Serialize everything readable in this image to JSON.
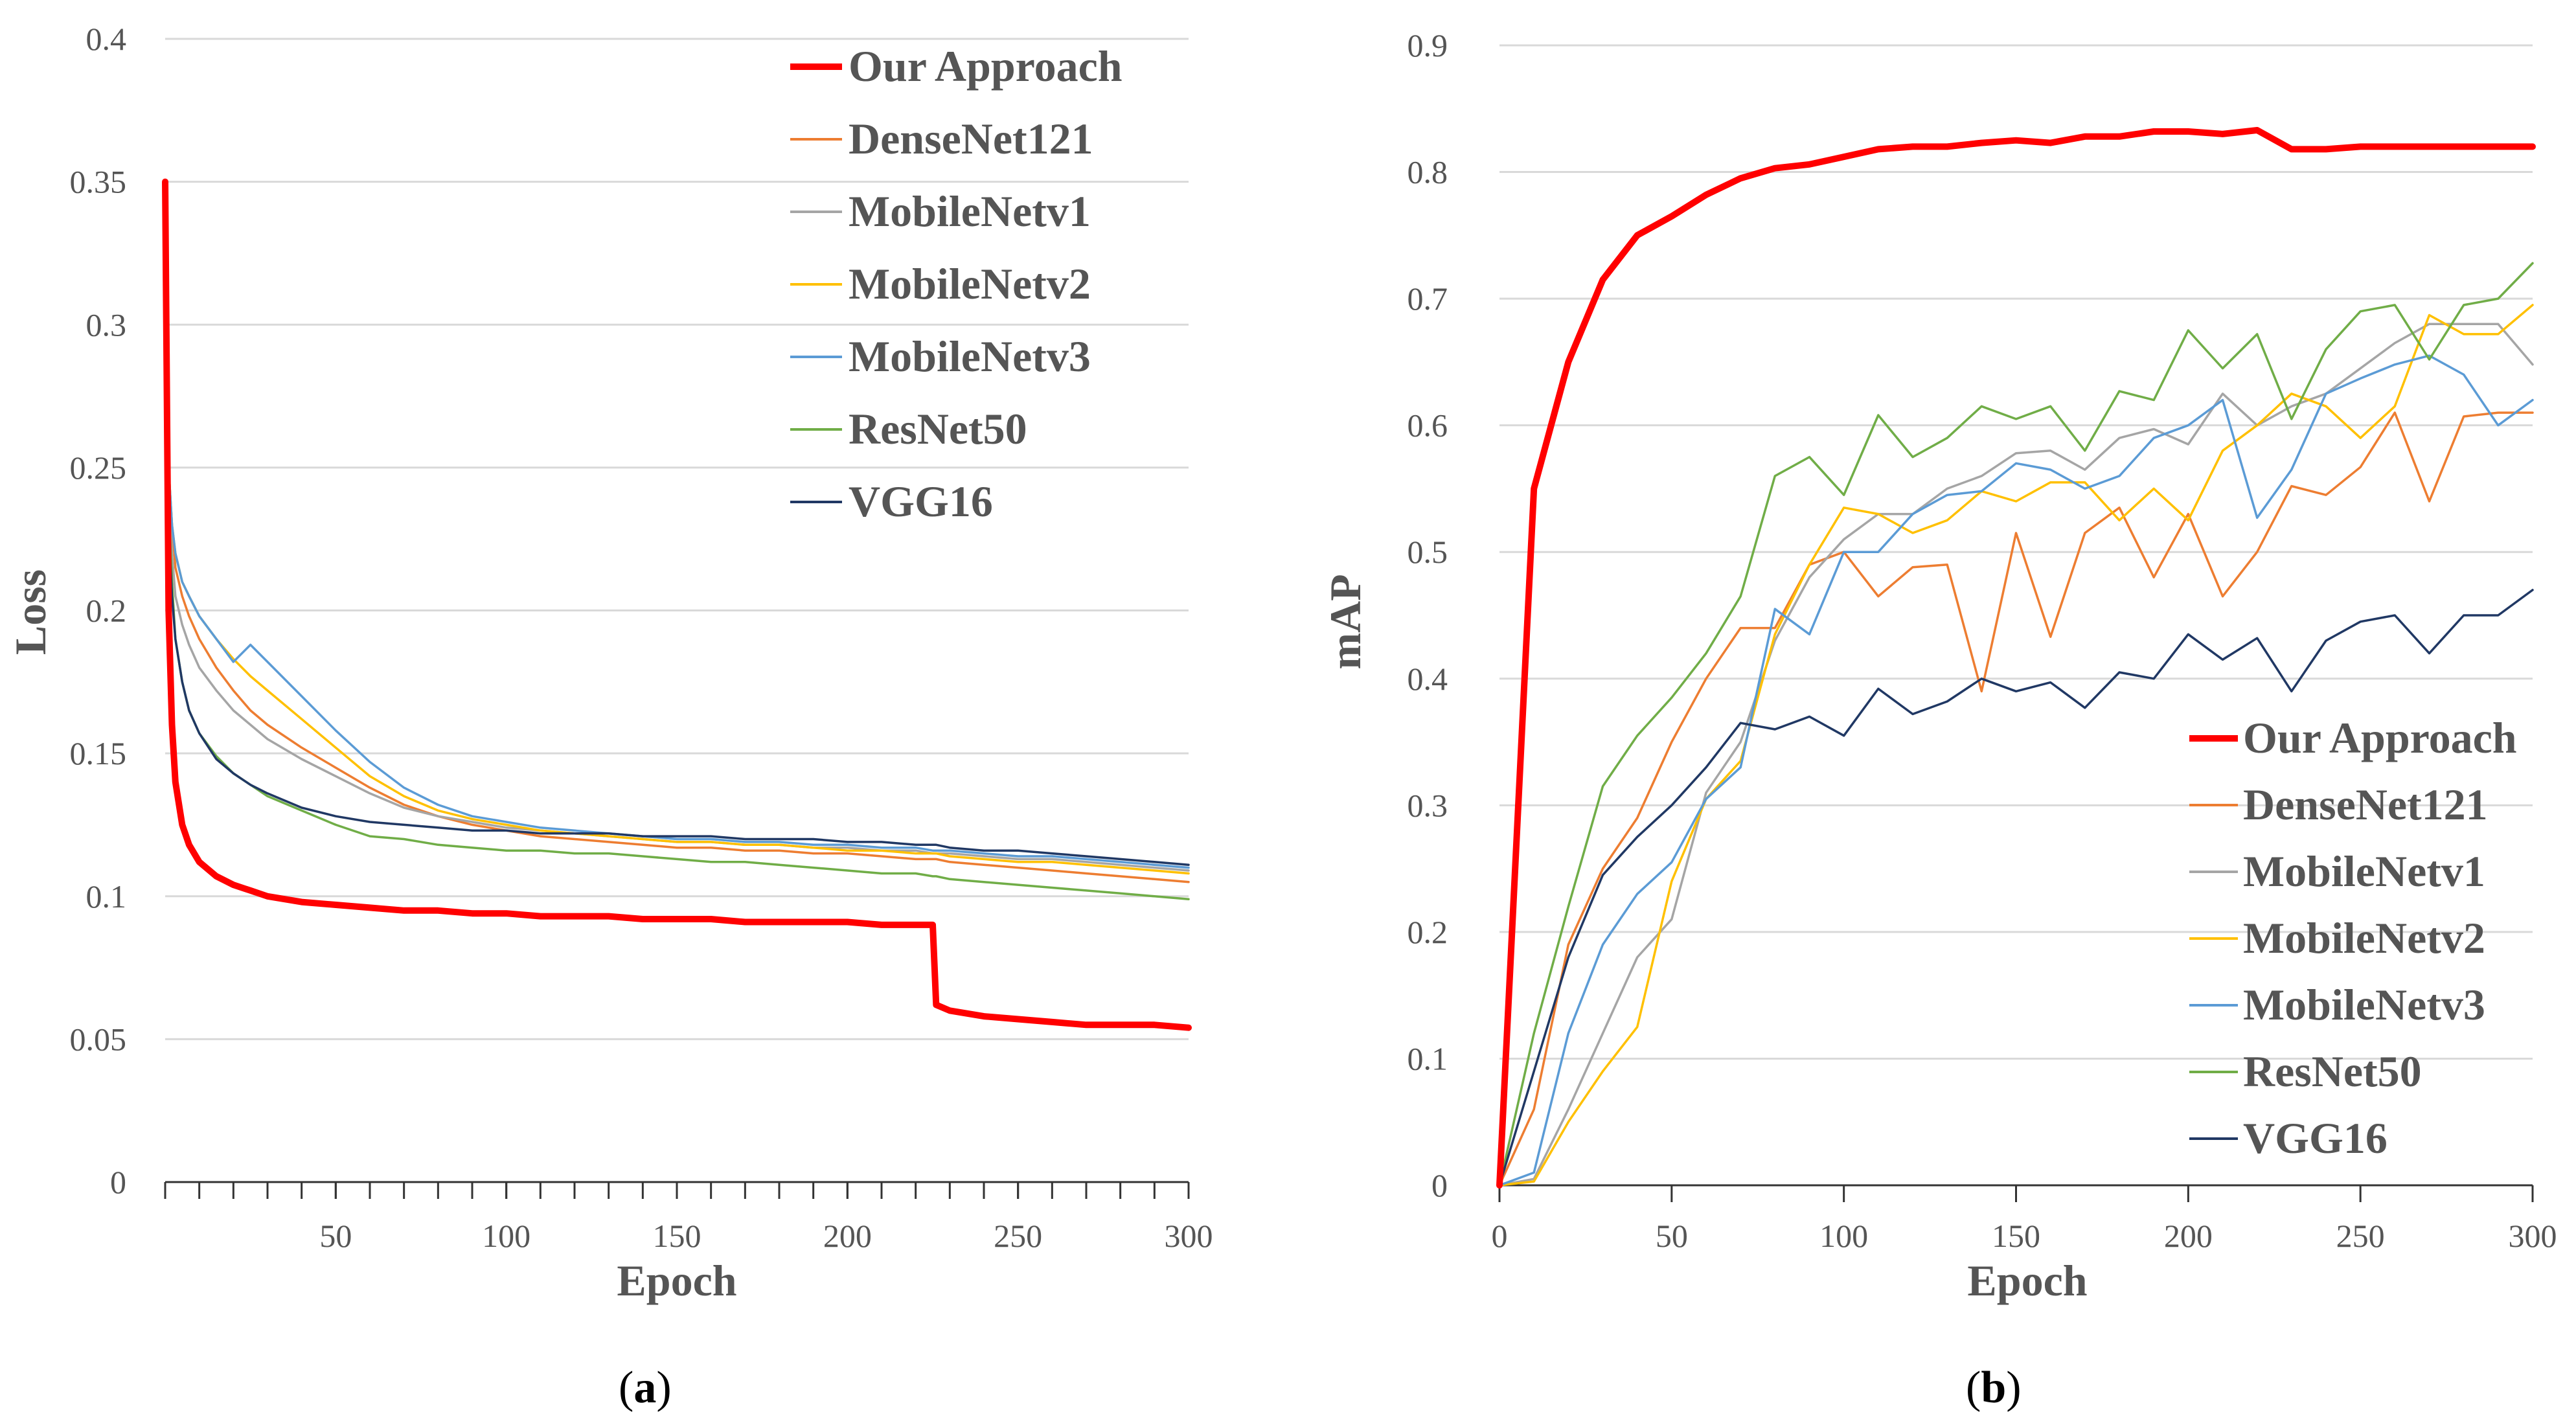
{
  "chart_data": [
    {
      "type": "line",
      "caption_letter": "a",
      "xlabel": "Epoch",
      "ylabel": "Loss",
      "xlim": [
        0,
        300
      ],
      "ylim": [
        0,
        0.4
      ],
      "x_ticks": [
        "50",
        "100",
        "150",
        "200",
        "250",
        "300"
      ],
      "y_ticks": [
        "0",
        "0.05",
        "0.1",
        "0.15",
        "0.2",
        "0.25",
        "0.3",
        "0.35",
        "0.4"
      ],
      "legend_position": "top-right",
      "x": [
        0,
        1,
        2,
        3,
        5,
        7,
        10,
        15,
        20,
        25,
        30,
        40,
        50,
        60,
        70,
        80,
        90,
        100,
        110,
        120,
        130,
        140,
        150,
        160,
        170,
        180,
        190,
        200,
        210,
        220,
        225,
        226,
        230,
        240,
        250,
        260,
        270,
        280,
        290,
        300
      ],
      "series": [
        {
          "name": "Our Approach",
          "color": "#FF0000",
          "width": "thick",
          "values": [
            0.35,
            0.2,
            0.16,
            0.14,
            0.125,
            0.118,
            0.112,
            0.107,
            0.104,
            0.102,
            0.1,
            0.098,
            0.097,
            0.096,
            0.095,
            0.095,
            0.094,
            0.094,
            0.093,
            0.093,
            0.093,
            0.092,
            0.092,
            0.092,
            0.091,
            0.091,
            0.091,
            0.091,
            0.09,
            0.09,
            0.09,
            0.062,
            0.06,
            0.058,
            0.057,
            0.056,
            0.055,
            0.055,
            0.055,
            0.054
          ]
        },
        {
          "name": "DenseNet121",
          "color": "#ED7D31",
          "width": "thin",
          "values": [
            0.3,
            0.25,
            0.23,
            0.215,
            0.205,
            0.198,
            0.19,
            0.18,
            0.172,
            0.165,
            0.16,
            0.152,
            0.145,
            0.138,
            0.132,
            0.128,
            0.125,
            0.123,
            0.121,
            0.12,
            0.119,
            0.118,
            0.117,
            0.117,
            0.116,
            0.116,
            0.115,
            0.115,
            0.114,
            0.113,
            0.113,
            0.113,
            0.112,
            0.111,
            0.11,
            0.109,
            0.108,
            0.107,
            0.106,
            0.105
          ]
        },
        {
          "name": "MobileNetv1",
          "color": "#A5A5A5",
          "width": "thin",
          "values": [
            0.29,
            0.24,
            0.22,
            0.205,
            0.195,
            0.188,
            0.18,
            0.172,
            0.165,
            0.16,
            0.155,
            0.148,
            0.142,
            0.136,
            0.131,
            0.128,
            0.126,
            0.124,
            0.123,
            0.122,
            0.121,
            0.12,
            0.119,
            0.119,
            0.118,
            0.118,
            0.117,
            0.117,
            0.116,
            0.116,
            0.115,
            0.115,
            0.115,
            0.114,
            0.113,
            0.113,
            0.112,
            0.111,
            0.11,
            0.109
          ]
        },
        {
          "name": "MobileNetv2",
          "color": "#FFC000",
          "width": "thin",
          "values": [
            0.29,
            0.25,
            0.23,
            0.22,
            0.21,
            0.205,
            0.198,
            0.19,
            0.183,
            0.177,
            0.172,
            0.162,
            0.152,
            0.142,
            0.135,
            0.13,
            0.127,
            0.125,
            0.123,
            0.122,
            0.121,
            0.12,
            0.119,
            0.119,
            0.118,
            0.118,
            0.117,
            0.116,
            0.116,
            0.115,
            0.115,
            0.115,
            0.114,
            0.113,
            0.112,
            0.112,
            0.111,
            0.11,
            0.109,
            0.108
          ]
        },
        {
          "name": "MobileNetv3",
          "color": "#5B9BD5",
          "width": "thin",
          "values": [
            0.29,
            0.25,
            0.23,
            0.22,
            0.21,
            0.205,
            0.198,
            0.19,
            0.182,
            0.188,
            0.182,
            0.17,
            0.158,
            0.147,
            0.138,
            0.132,
            0.128,
            0.126,
            0.124,
            0.123,
            0.122,
            0.121,
            0.12,
            0.12,
            0.119,
            0.119,
            0.118,
            0.118,
            0.117,
            0.117,
            0.116,
            0.116,
            0.116,
            0.115,
            0.114,
            0.114,
            0.113,
            0.112,
            0.111,
            0.11
          ]
        },
        {
          "name": "ResNet50",
          "color": "#70AD47",
          "width": "thin",
          "values": [
            0.29,
            0.24,
            0.21,
            0.19,
            0.175,
            0.165,
            0.157,
            0.149,
            0.143,
            0.139,
            0.135,
            0.13,
            0.125,
            0.121,
            0.12,
            0.118,
            0.117,
            0.116,
            0.116,
            0.115,
            0.115,
            0.114,
            0.113,
            0.112,
            0.112,
            0.111,
            0.11,
            0.109,
            0.108,
            0.108,
            0.107,
            0.107,
            0.106,
            0.105,
            0.104,
            0.103,
            0.102,
            0.101,
            0.1,
            0.099
          ]
        },
        {
          "name": "VGG16",
          "color": "#203864",
          "width": "thin",
          "values": [
            0.28,
            0.23,
            0.205,
            0.19,
            0.175,
            0.165,
            0.157,
            0.148,
            0.143,
            0.139,
            0.136,
            0.131,
            0.128,
            0.126,
            0.125,
            0.124,
            0.123,
            0.123,
            0.122,
            0.122,
            0.122,
            0.121,
            0.121,
            0.121,
            0.12,
            0.12,
            0.12,
            0.119,
            0.119,
            0.118,
            0.118,
            0.118,
            0.117,
            0.116,
            0.116,
            0.115,
            0.114,
            0.113,
            0.112,
            0.111
          ]
        }
      ]
    },
    {
      "type": "line",
      "caption_letter": "b",
      "xlabel": "Epoch",
      "ylabel": "mAP",
      "xlim": [
        0,
        300
      ],
      "ylim": [
        0,
        0.9
      ],
      "x_ticks": [
        "0",
        "50",
        "100",
        "150",
        "200",
        "250",
        "300"
      ],
      "y_ticks": [
        "0",
        "0.1",
        "0.2",
        "0.3",
        "0.4",
        "0.5",
        "0.6",
        "0.7",
        "0.8",
        "0.9"
      ],
      "legend_position": "bottom-right",
      "x": [
        0,
        10,
        20,
        30,
        40,
        50,
        60,
        70,
        80,
        90,
        100,
        110,
        120,
        130,
        140,
        150,
        160,
        170,
        180,
        190,
        200,
        210,
        220,
        230,
        240,
        250,
        260,
        270,
        280,
        290,
        300
      ],
      "series": [
        {
          "name": "Our Approach",
          "color": "#FF0000",
          "width": "thick",
          "values": [
            0,
            0.55,
            0.65,
            0.715,
            0.75,
            0.765,
            0.782,
            0.795,
            0.803,
            0.806,
            0.812,
            0.818,
            0.82,
            0.82,
            0.823,
            0.825,
            0.823,
            0.828,
            0.828,
            0.832,
            0.832,
            0.83,
            0.833,
            0.818,
            0.818,
            0.82,
            0.82,
            0.82,
            0.82,
            0.82,
            0.82
          ]
        },
        {
          "name": "DenseNet121",
          "color": "#ED7D31",
          "width": "thin",
          "values": [
            0,
            0.06,
            0.19,
            0.25,
            0.29,
            0.35,
            0.4,
            0.44,
            0.44,
            0.49,
            0.5,
            0.465,
            0.488,
            0.49,
            0.39,
            0.515,
            0.433,
            0.515,
            0.535,
            0.48,
            0.53,
            0.465,
            0.5,
            0.552,
            0.545,
            0.567,
            0.61,
            0.54,
            0.607,
            0.61,
            0.61
          ]
        },
        {
          "name": "MobileNetv1",
          "color": "#A5A5A5",
          "width": "thin",
          "values": [
            0,
            0.005,
            0.06,
            0.12,
            0.18,
            0.21,
            0.31,
            0.35,
            0.43,
            0.48,
            0.51,
            0.53,
            0.53,
            0.55,
            0.56,
            0.578,
            0.58,
            0.565,
            0.59,
            0.597,
            0.585,
            0.625,
            0.6,
            0.615,
            0.625,
            0.645,
            0.665,
            0.68,
            0.68,
            0.68,
            0.648
          ]
        },
        {
          "name": "MobileNetv2",
          "color": "#FFC000",
          "width": "thin",
          "values": [
            0,
            0.003,
            0.05,
            0.09,
            0.125,
            0.24,
            0.305,
            0.335,
            0.435,
            0.49,
            0.535,
            0.53,
            0.515,
            0.525,
            0.548,
            0.54,
            0.555,
            0.555,
            0.525,
            0.55,
            0.525,
            0.58,
            0.6,
            0.625,
            0.615,
            0.59,
            0.615,
            0.687,
            0.672,
            0.672,
            0.695
          ]
        },
        {
          "name": "MobileNetv3",
          "color": "#5B9BD5",
          "width": "thin",
          "values": [
            0,
            0.01,
            0.12,
            0.19,
            0.23,
            0.255,
            0.305,
            0.33,
            0.455,
            0.435,
            0.5,
            0.5,
            0.53,
            0.545,
            0.548,
            0.57,
            0.565,
            0.55,
            0.56,
            0.59,
            0.6,
            0.62,
            0.527,
            0.565,
            0.625,
            0.637,
            0.648,
            0.655,
            0.64,
            0.6,
            0.62
          ]
        },
        {
          "name": "ResNet50",
          "color": "#70AD47",
          "width": "thin",
          "values": [
            0,
            0.12,
            0.22,
            0.315,
            0.355,
            0.385,
            0.42,
            0.465,
            0.56,
            0.575,
            0.545,
            0.608,
            0.575,
            0.59,
            0.615,
            0.605,
            0.615,
            0.58,
            0.627,
            0.62,
            0.675,
            0.645,
            0.672,
            0.605,
            0.66,
            0.69,
            0.695,
            0.652,
            0.695,
            0.7,
            0.728
          ]
        },
        {
          "name": "VGG16",
          "color": "#203864",
          "width": "thin",
          "values": [
            0,
            0.09,
            0.18,
            0.245,
            0.275,
            0.3,
            0.33,
            0.365,
            0.36,
            0.37,
            0.355,
            0.392,
            0.372,
            0.382,
            0.4,
            0.39,
            0.397,
            0.377,
            0.405,
            0.4,
            0.435,
            0.415,
            0.432,
            0.39,
            0.43,
            0.445,
            0.45,
            0.42,
            0.45,
            0.45,
            0.47
          ]
        }
      ]
    }
  ]
}
